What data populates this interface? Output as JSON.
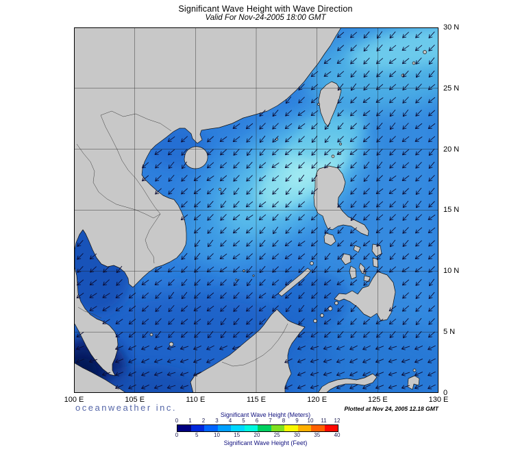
{
  "title": "Significant Wave Height with Wave Direction",
  "subtitle": "Valid For Nov-24-2005 18:00 GMT",
  "branding": "oceanweather inc.",
  "plotted_label": "Plotted at Nov 24, 2005 12.18 GMT",
  "axes": {
    "lon_labels": [
      "100 E",
      "105 E",
      "110 E",
      "115 E",
      "120 E",
      "125 E",
      "130 E"
    ],
    "lat_labels": [
      "30 N",
      "25 N",
      "20 N",
      "15 N",
      "10 N",
      "5 N",
      "0"
    ]
  },
  "legend": {
    "meters_title": "Significant Wave Height (Meters)",
    "feet_title": "Significant Wave Height (Feet)",
    "meters_ticks": [
      "0",
      "1",
      "2",
      "3",
      "4",
      "5",
      "6",
      "7",
      "8",
      "9",
      "10",
      "11",
      "12"
    ],
    "feet_ticks": [
      "0",
      "5",
      "10",
      "15",
      "20",
      "25",
      "30",
      "35",
      "40"
    ],
    "bar_colors": [
      "#000080",
      "#0028dc",
      "#0064ff",
      "#00a0ff",
      "#00d8ff",
      "#00f8e0",
      "#00d060",
      "#80e020",
      "#f8f800",
      "#ffb000",
      "#ff6000",
      "#ff0800"
    ]
  },
  "map": {
    "sea_base_color": "#2e7fdd",
    "high_wave_color": "#8fe2f0",
    "low_wave_color": "#0a2070",
    "land_color": "#c8c8c8",
    "arrow_color": "#0b0b32",
    "arrow_direction": "southwest"
  }
}
